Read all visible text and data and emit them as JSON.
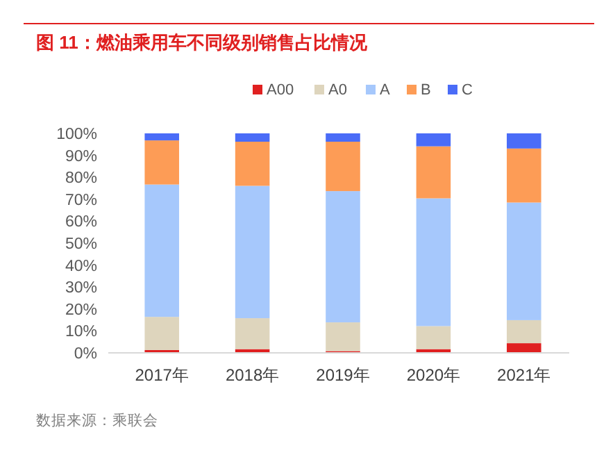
{
  "chart_data": {
    "type": "bar",
    "stacked": true,
    "title": "图 11：燃油乘用车不同级别销售占比情况",
    "categories": [
      "2017年",
      "2018年",
      "2019年",
      "2020年",
      "2021年"
    ],
    "series": [
      {
        "name": "A00",
        "color": "#e02020",
        "values": [
          1.3,
          1.7,
          0.8,
          1.7,
          4.4
        ]
      },
      {
        "name": "A0",
        "color": "#ded5bd",
        "values": [
          15.1,
          14.1,
          13.1,
          10.5,
          10.5
        ]
      },
      {
        "name": "A",
        "color": "#a6c8fc",
        "values": [
          60.3,
          60.3,
          59.8,
          58.2,
          53.6
        ]
      },
      {
        "name": "B",
        "color": "#fd9c56",
        "values": [
          20.1,
          20.1,
          22.5,
          23.7,
          24.6
        ]
      },
      {
        "name": "C",
        "color": "#4a6cf7",
        "values": [
          3.2,
          3.8,
          3.8,
          5.9,
          6.9
        ]
      }
    ],
    "ylim": [
      0,
      100
    ],
    "yticks": [
      {
        "value": 0,
        "label": "0%"
      },
      {
        "value": 10,
        "label": "10%"
      },
      {
        "value": 20,
        "label": "20%"
      },
      {
        "value": 30,
        "label": "30%"
      },
      {
        "value": 40,
        "label": "40%"
      },
      {
        "value": 50,
        "label": "50%"
      },
      {
        "value": 60,
        "label": "60%"
      },
      {
        "value": 70,
        "label": "70%"
      },
      {
        "value": 80,
        "label": "80%"
      },
      {
        "value": 90,
        "label": "90%"
      },
      {
        "value": 100,
        "label": "100%"
      }
    ],
    "grid": false,
    "legend": "top",
    "annotations": [
      "数据来源：乘联会"
    ]
  }
}
